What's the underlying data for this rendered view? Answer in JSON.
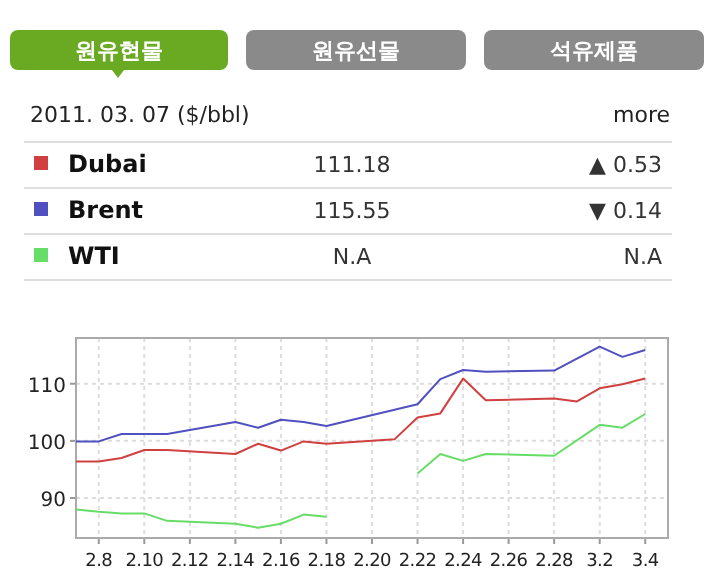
{
  "chart_data": {
    "type": "line",
    "title": "2011. 03. 07 ($/bbl)",
    "annotations": [
      "원유현물",
      "원유선물",
      "석유제품",
      "more",
      "111.18",
      "▲ 0.53",
      "115.55",
      "▼ 0.14",
      "N.A",
      "N.A"
    ],
    "legend": "top",
    "grid": true,
    "marker": "none",
    "line_style": "solid",
    "xlim": [
      "--02-07",
      "--03-05"
    ],
    "xticks": [
      {
        "value": "--02-08",
        "label": "2.8"
      },
      {
        "value": "--02-10",
        "label": "2.10"
      },
      {
        "value": "--02-12",
        "label": "2.12"
      },
      {
        "value": "--02-14",
        "label": "2.14"
      },
      {
        "value": "--02-16",
        "label": "2.16"
      },
      {
        "value": "--02-18",
        "label": "2.18"
      },
      {
        "value": "--02-20",
        "label": "2.20"
      },
      {
        "value": "--02-22",
        "label": "2.22"
      },
      {
        "value": "--02-24",
        "label": "2.24"
      },
      {
        "value": "--02-26",
        "label": "2.26"
      },
      {
        "value": "--02-28",
        "label": "2.28"
      },
      {
        "value": "--03-02",
        "label": "3.2"
      },
      {
        "value": "--03-04",
        "label": "3.4"
      }
    ],
    "ylim": [
      83,
      118
    ],
    "yticks": [
      90,
      100,
      110
    ],
    "series": [
      {
        "name": "Dubai",
        "color": "#d04040",
        "x": [
          "--02-07",
          "--02-08",
          "--02-09",
          "--02-10",
          "--02-11",
          "--02-14",
          "--02-15",
          "--02-16",
          "--02-17",
          "--02-18",
          "--02-21",
          "--02-22",
          "--02-23",
          "--02-24",
          "--02-25",
          "--02-28",
          "--03-01",
          "--03-02",
          "--03-03",
          "--03-04"
        ],
        "values": [
          96.4,
          96.4,
          97.0,
          98.4,
          98.4,
          97.7,
          99.5,
          98.3,
          99.9,
          99.5,
          100.3,
          104.1,
          104.8,
          110.9,
          107.1,
          107.4,
          106.9,
          109.2,
          109.9,
          110.9
        ]
      },
      {
        "name": "Brent",
        "color": "#5050c0",
        "x": [
          "--02-07",
          "--02-08",
          "--02-09",
          "--02-10",
          "--02-11",
          "--02-14",
          "--02-15",
          "--02-16",
          "--02-17",
          "--02-18",
          "--02-22",
          "--02-23",
          "--02-24",
          "--02-25",
          "--02-28",
          "--03-02",
          "--03-03",
          "--03-04"
        ],
        "values": [
          99.9,
          99.9,
          101.2,
          101.2,
          101.2,
          103.3,
          102.3,
          103.7,
          103.3,
          102.6,
          106.4,
          110.8,
          112.4,
          112.1,
          112.3,
          116.5,
          114.7,
          115.9
        ]
      },
      {
        "name": "WTI",
        "color": "#66dd66",
        "x": [
          "--02-07",
          "--02-08",
          "--02-09",
          "--02-10",
          "--02-11",
          "--02-14",
          "--02-15",
          "--02-16",
          "--02-17",
          "--02-18",
          "--02-21",
          "--02-22",
          "--02-23",
          "--02-24",
          "--02-25",
          "--02-28",
          "--03-02",
          "--03-03",
          "--03-04"
        ],
        "values": [
          88.0,
          87.6,
          87.3,
          87.3,
          86.0,
          85.5,
          84.8,
          85.5,
          87.1,
          86.7,
          null,
          94.3,
          97.7,
          96.5,
          97.7,
          97.4,
          102.8,
          102.3,
          104.7
        ]
      }
    ]
  }
}
